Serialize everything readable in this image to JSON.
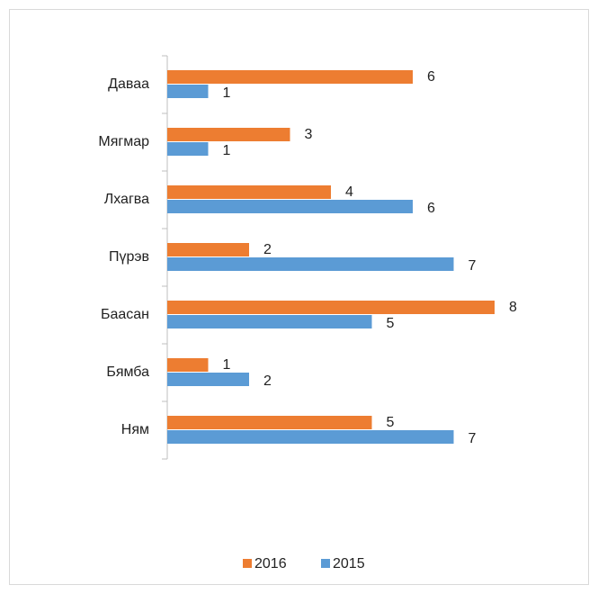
{
  "chart_data": {
    "type": "bar",
    "orientation": "horizontal",
    "categories": [
      "Даваа",
      "Мягмар",
      "Лхагва",
      "Пүрэв",
      "Баасан",
      "Бямба",
      "Ням"
    ],
    "series": [
      {
        "name": "2016",
        "color": "#ed7d31",
        "values": [
          6,
          3,
          4,
          2,
          8,
          1,
          5
        ]
      },
      {
        "name": "2015",
        "color": "#5b9bd5",
        "values": [
          1,
          1,
          6,
          7,
          5,
          2,
          7
        ]
      }
    ],
    "xlim": [
      0,
      8
    ],
    "legend": "bottom",
    "data_labels": true
  }
}
